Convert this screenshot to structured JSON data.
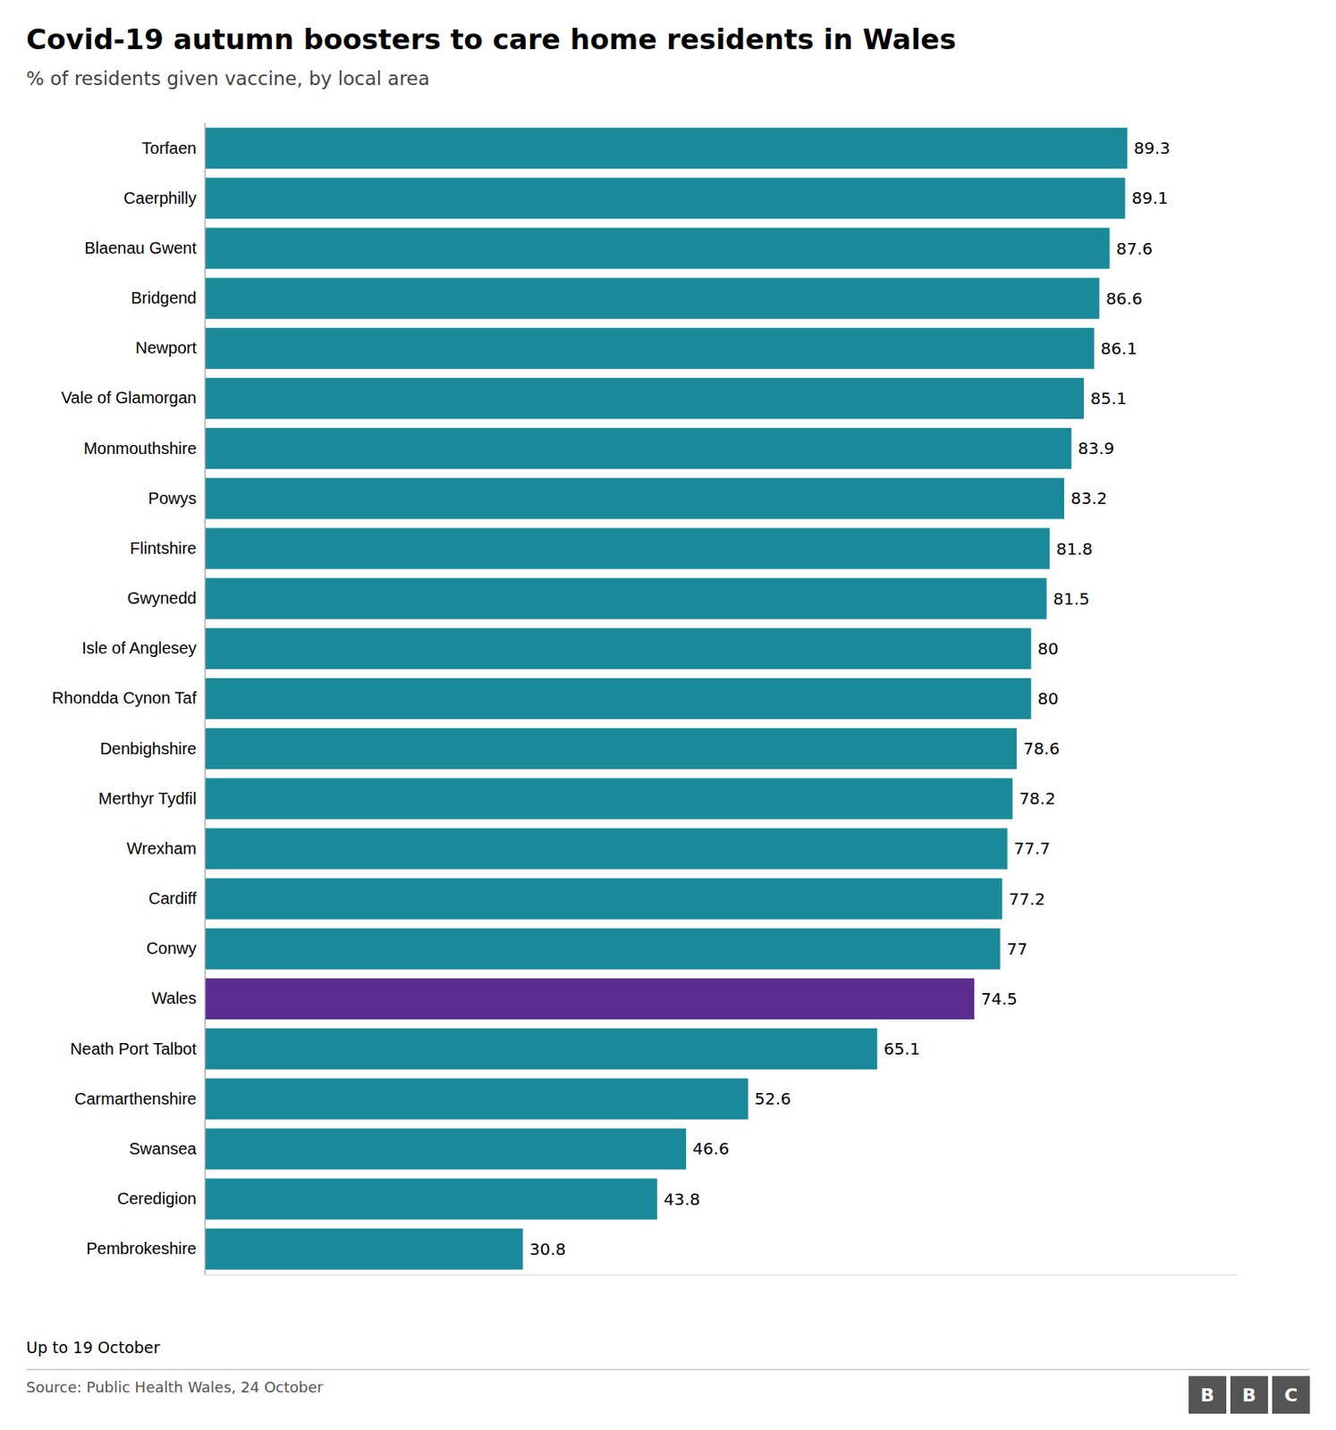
{
  "chart_data": {
    "type": "bar",
    "orientation": "horizontal",
    "title": "Covid-19 autumn boosters to care home residents in Wales",
    "subtitle": "% of residents given vaccine, by local area",
    "annotations": [
      "Up to 19 October",
      "Source: Public Health Wales, 24 October",
      "BBC"
    ],
    "categories": [
      "Torfaen",
      "Caerphilly",
      "Blaenau Gwent",
      "Bridgend",
      "Newport",
      "Vale of Glamorgan",
      "Monmouthshire",
      "Powys",
      "Flintshire",
      "Gwynedd",
      "Isle of Anglesey",
      "Rhondda Cynon Taf",
      "Denbighshire",
      "Merthyr Tydfil",
      "Wrexham",
      "Cardiff",
      "Conwy",
      "Wales",
      "Neath Port Talbot",
      "Carmarthenshire",
      "Swansea",
      "Ceredigion",
      "Pembrokeshire"
    ],
    "values": [
      89.3,
      89.1,
      87.6,
      86.6,
      86.1,
      85.1,
      83.9,
      83.2,
      81.8,
      81.5,
      80.0,
      80.0,
      78.6,
      78.2,
      77.7,
      77.2,
      77.0,
      74.5,
      65.1,
      52.6,
      46.6,
      43.8,
      30.8
    ],
    "colors": [
      "#1a8a9a",
      "#1a8a9a",
      "#1a8a9a",
      "#1a8a9a",
      "#1a8a9a",
      "#1a8a9a",
      "#1a8a9a",
      "#1a8a9a",
      "#1a8a9a",
      "#1a8a9a",
      "#1a8a9a",
      "#1a8a9a",
      "#1a8a9a",
      "#1a8a9a",
      "#1a8a9a",
      "#1a8a9a",
      "#1a8a9a",
      "#5b2d8e",
      "#1a8a9a",
      "#1a8a9a",
      "#1a8a9a",
      "#1a8a9a",
      "#1a8a9a"
    ],
    "xlim": [
      0,
      100
    ],
    "data_labels": true,
    "tick_labels": "y",
    "grid": false
  }
}
